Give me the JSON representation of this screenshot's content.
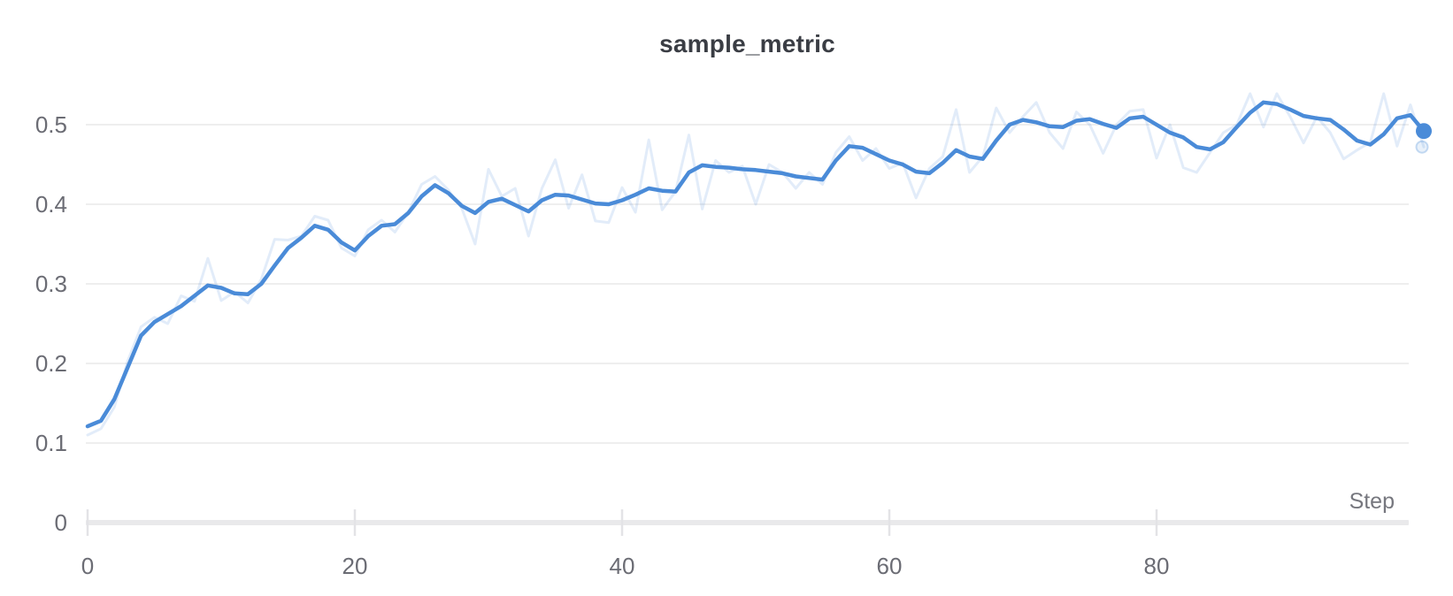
{
  "chart": {
    "title": "sample_metric",
    "x_axis_label": "Step",
    "x_ticks": [
      0,
      20,
      40,
      60,
      80
    ],
    "y_ticks": [
      0,
      0.1,
      0.2,
      0.3,
      0.4,
      0.5
    ],
    "colors": {
      "accent": "#4a8bd8",
      "raw_line": "rgba(74,139,216,0.16)",
      "raw_dot_fill": "rgba(74,139,216,0.12)",
      "raw_dot_stroke": "rgba(74,139,216,0.30)",
      "grid": "#e8e8e9",
      "axis_bar": "#e9e9eb",
      "tick": "#e3e3e6",
      "tick_label": "#6b6c74",
      "axis_label": "#76777e",
      "title": "#3a3d44",
      "background": "#ffffff"
    }
  },
  "chart_data": {
    "type": "line",
    "title": "sample_metric",
    "xlabel": "Step",
    "ylabel": "",
    "xlim": [
      0,
      100
    ],
    "ylim": [
      0,
      0.56
    ],
    "grid": "horizontal-only",
    "legend": "none",
    "x_step": 1,
    "x": [
      0,
      1,
      2,
      3,
      4,
      5,
      6,
      7,
      8,
      9,
      10,
      11,
      12,
      13,
      14,
      15,
      16,
      17,
      18,
      19,
      20,
      21,
      22,
      23,
      24,
      25,
      26,
      27,
      28,
      29,
      30,
      31,
      32,
      33,
      34,
      35,
      36,
      37,
      38,
      39,
      40,
      41,
      42,
      43,
      44,
      45,
      46,
      47,
      48,
      49,
      50,
      51,
      52,
      53,
      54,
      55,
      56,
      57,
      58,
      59,
      60,
      61,
      62,
      63,
      64,
      65,
      66,
      67,
      68,
      69,
      70,
      71,
      72,
      73,
      74,
      75,
      76,
      77,
      78,
      79,
      80,
      81,
      82,
      83,
      84,
      85,
      86,
      87,
      88,
      89,
      90,
      91,
      92,
      93,
      94,
      95,
      96,
      97,
      98,
      99,
      100
    ],
    "series": [
      {
        "name": "sample_metric (raw)",
        "role": "raw",
        "color": "rgba(74,139,216,0.16)",
        "values": [
          0.11,
          0.118,
          0.145,
          0.203,
          0.246,
          0.258,
          0.25,
          0.285,
          0.278,
          0.332,
          0.279,
          0.29,
          0.276,
          0.306,
          0.356,
          0.355,
          0.36,
          0.385,
          0.38,
          0.345,
          0.335,
          0.368,
          0.38,
          0.365,
          0.39,
          0.425,
          0.435,
          0.418,
          0.395,
          0.35,
          0.444,
          0.41,
          0.42,
          0.36,
          0.42,
          0.456,
          0.395,
          0.437,
          0.379,
          0.377,
          0.421,
          0.39,
          0.481,
          0.393,
          0.416,
          0.487,
          0.394,
          0.455,
          0.44,
          0.448,
          0.4,
          0.45,
          0.44,
          0.42,
          0.44,
          0.425,
          0.465,
          0.485,
          0.455,
          0.47,
          0.445,
          0.452,
          0.408,
          0.445,
          0.46,
          0.519,
          0.44,
          0.46,
          0.521,
          0.49,
          0.51,
          0.528,
          0.49,
          0.47,
          0.516,
          0.5,
          0.464,
          0.5,
          0.517,
          0.519,
          0.458,
          0.5,
          0.446,
          0.44,
          0.465,
          0.49,
          0.5,
          0.539,
          0.497,
          0.539,
          0.51,
          0.477,
          0.51,
          0.49,
          0.457,
          0.468,
          0.478,
          0.539,
          0.473,
          0.525,
          0.472
        ]
      },
      {
        "name": "sample_metric (smoothed)",
        "role": "smoothed",
        "color": "#4a8bd8",
        "values": [
          0.121,
          0.128,
          0.155,
          0.195,
          0.235,
          0.252,
          0.262,
          0.272,
          0.285,
          0.298,
          0.295,
          0.288,
          0.287,
          0.3,
          0.323,
          0.345,
          0.358,
          0.373,
          0.368,
          0.352,
          0.342,
          0.36,
          0.373,
          0.375,
          0.389,
          0.41,
          0.424,
          0.414,
          0.398,
          0.389,
          0.403,
          0.407,
          0.399,
          0.391,
          0.405,
          0.412,
          0.411,
          0.406,
          0.401,
          0.4,
          0.405,
          0.412,
          0.42,
          0.417,
          0.416,
          0.44,
          0.449,
          0.447,
          0.446,
          0.444,
          0.443,
          0.441,
          0.439,
          0.435,
          0.433,
          0.431,
          0.455,
          0.473,
          0.471,
          0.463,
          0.455,
          0.45,
          0.441,
          0.439,
          0.452,
          0.468,
          0.46,
          0.457,
          0.48,
          0.5,
          0.506,
          0.503,
          0.498,
          0.497,
          0.505,
          0.507,
          0.501,
          0.496,
          0.508,
          0.51,
          0.5,
          0.49,
          0.484,
          0.472,
          0.469,
          0.478,
          0.497,
          0.515,
          0.528,
          0.526,
          0.519,
          0.511,
          0.508,
          0.506,
          0.494,
          0.48,
          0.475,
          0.488,
          0.508,
          0.512,
          0.492
        ]
      }
    ]
  }
}
